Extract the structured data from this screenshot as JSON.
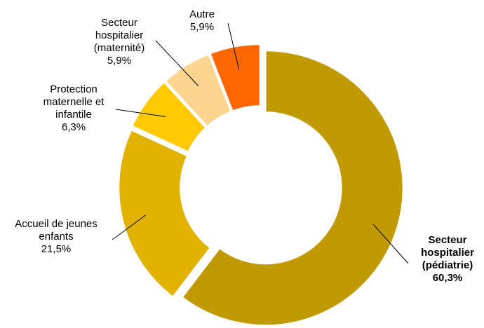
{
  "chart_data": {
    "type": "donut",
    "categories": [
      "Secteur hospitalier (pédiatrie)",
      "Accueil de jeunes enfants",
      "Protection maternelle et infantile",
      "Secteur hospitalier (maternité)",
      "Autre"
    ],
    "values": [
      60.3,
      21.5,
      6.3,
      5.9,
      5.9
    ],
    "value_labels": [
      "60,3%",
      "21,5%",
      "6,3%",
      "5,9%",
      "5,9%"
    ],
    "colors": [
      "#c09a00",
      "#e2b200",
      "#ffc800",
      "#fdd58e",
      "#ff6600"
    ]
  }
}
